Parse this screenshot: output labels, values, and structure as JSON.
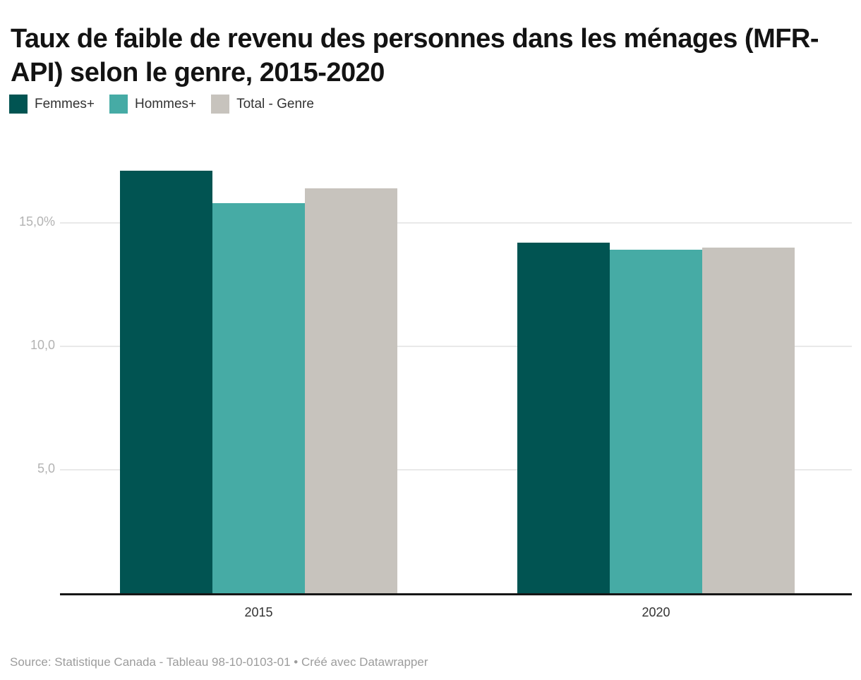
{
  "title": "Taux de faible de revenu des personnes dans les ménages (MFR-API) selon le genre, 2015-2020",
  "legend": [
    {
      "label": "Femmes+",
      "color": "#015452"
    },
    {
      "label": "Hommes+",
      "color": "#46aba5"
    },
    {
      "label": "Total - Genre",
      "color": "#c7c3bd"
    }
  ],
  "source": "Source: Statistique Canada - Tableau 98-10-0103-01 • Créé avec Datawrapper",
  "colors": {
    "femmes": "#015452",
    "hommes": "#46aba5",
    "total": "#c7c3bd",
    "gridline": "#e9e9e9",
    "axis_line": "#161616",
    "y_tick_text": "#b3b3b3",
    "x_tick_text": "#333333",
    "source_text": "#9c9c9c"
  },
  "chart_data": {
    "type": "bar",
    "title": "Taux de faible de revenu des personnes dans les ménages (MFR-API) selon le genre, 2015-2020",
    "categories": [
      "2015",
      "2020"
    ],
    "series": [
      {
        "name": "Femmes+",
        "color": "#015452",
        "values": [
          17.1,
          14.2
        ]
      },
      {
        "name": "Hommes+",
        "color": "#46aba5",
        "values": [
          15.8,
          13.9
        ]
      },
      {
        "name": "Total - Genre",
        "color": "#c7c3bd",
        "values": [
          16.4,
          14.0
        ]
      }
    ],
    "xlabel": "",
    "ylabel": "",
    "unit": "%",
    "ylim": [
      0,
      17.7
    ],
    "yticks": [
      {
        "value": 5,
        "label": "5,0"
      },
      {
        "value": 10,
        "label": "10,0"
      },
      {
        "value": 15,
        "label": "15,0%"
      }
    ],
    "grid": true,
    "legend_position": "top-left"
  }
}
